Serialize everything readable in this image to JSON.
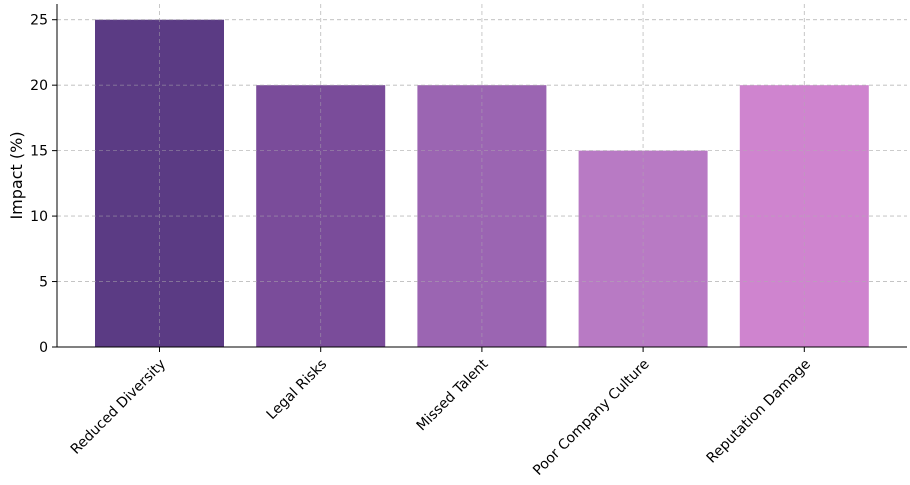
{
  "chart_data": {
    "type": "bar",
    "title": "",
    "xlabel": "",
    "ylabel": "Impact (%)",
    "categories": [
      "Reduced Diversity",
      "Legal Risks",
      "Missed Talent",
      "Poor Company Culture",
      "Reputation Damage"
    ],
    "values": [
      25,
      20,
      20,
      15,
      20
    ],
    "colors": [
      "#5b3b84",
      "#7a4c9a",
      "#9b65b2",
      "#b87ac4",
      "#cf84cf"
    ],
    "ylim": [
      0,
      26.2
    ],
    "yticks": [
      0,
      5,
      10,
      15,
      20,
      25
    ],
    "grid": true
  }
}
